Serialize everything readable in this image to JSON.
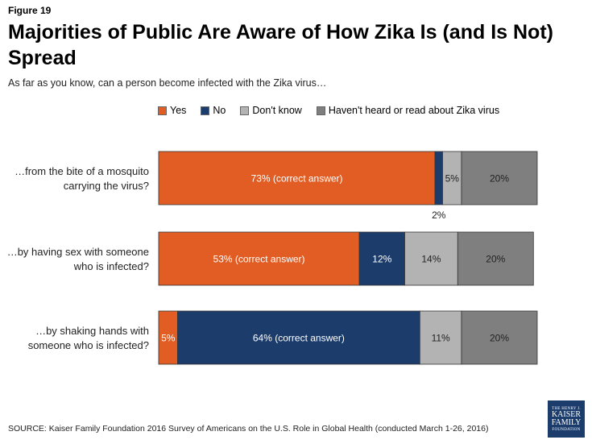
{
  "figure_label": "Figure 19",
  "title": "Majorities of Public Are Aware of How Zika Is (and Is Not) Spread",
  "subtitle": "As far as you know, can a person become infected with the Zika virus…",
  "source": "SOURCE: Kaiser Family Foundation 2016 Survey of Americans on the U.S. Role in Global Health (conducted March 1-26, 2016)",
  "logo": {
    "line1": "THE HENRY J.",
    "line2": "KAISER",
    "line3": "FAMILY",
    "line4": "FOUNDATION"
  },
  "colors": {
    "yes": "#e15d24",
    "no": "#1c3d6b",
    "dont_know": "#b3b3b3",
    "havent_heard": "#7f7f7f"
  },
  "chart_data": {
    "type": "bar",
    "orientation": "horizontal",
    "stacked": true,
    "legend_position": "top",
    "categories": [
      "…from the bite of a mosquito carrying the virus?",
      "…by having sex with someone who is infected?",
      "…by shaking hands with someone who is infected?"
    ],
    "category_lines": [
      [
        "…from the bite of a mosquito",
        "carrying the virus?"
      ],
      [
        "…by having sex with someone",
        "who is infected?"
      ],
      [
        "…by shaking hands with",
        "someone who is infected?"
      ]
    ],
    "series": [
      {
        "name": "Yes",
        "color_key": "yes",
        "values": [
          73,
          53,
          5
        ],
        "labels": [
          "73% (correct answer)",
          "53% (correct answer)",
          "5%"
        ]
      },
      {
        "name": "No",
        "color_key": "no",
        "values": [
          2,
          12,
          64
        ],
        "labels": [
          "2%",
          "12%",
          "64% (correct answer)"
        ]
      },
      {
        "name": "Don't know",
        "color_key": "dont_know",
        "values": [
          5,
          14,
          11
        ],
        "labels": [
          "5%",
          "14%",
          "11%"
        ]
      },
      {
        "name": "Haven't heard or read about Zika virus",
        "color_key": "havent_heard",
        "values": [
          20,
          20,
          20
        ],
        "labels": [
          "20%",
          "20%",
          "20%"
        ]
      }
    ]
  }
}
